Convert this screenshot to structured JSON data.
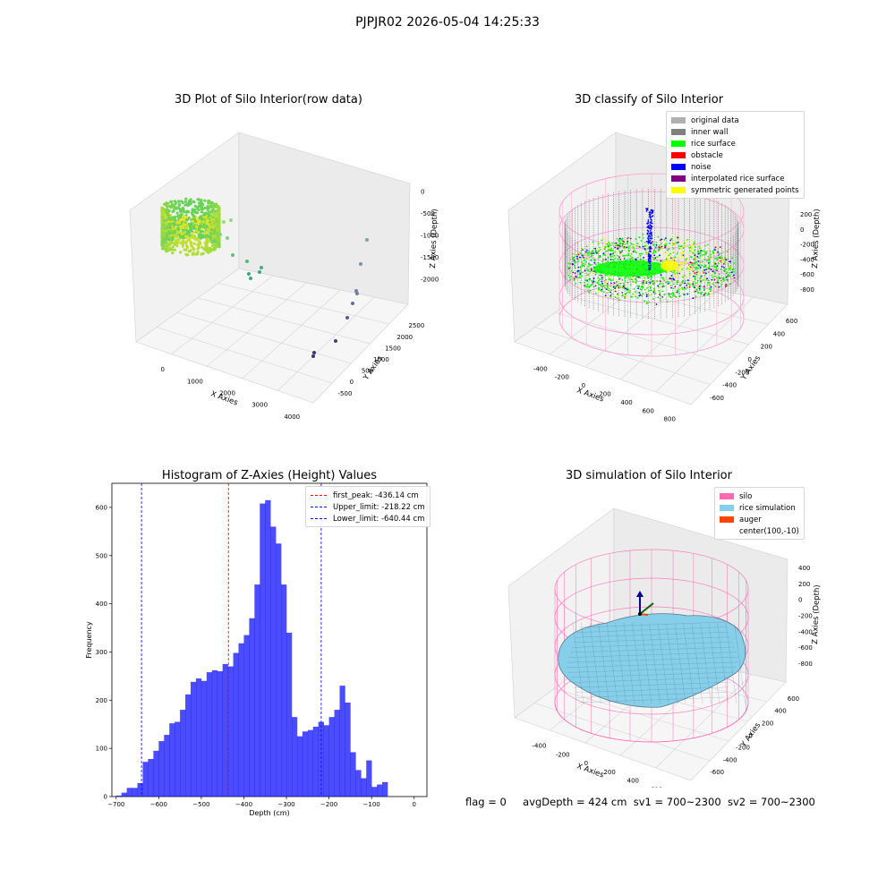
{
  "figure": {
    "suptitle": "PJPJR02 2026-05-04 14:25:33",
    "status": {
      "flag": "flag = 0",
      "avg_depth": "avgDepth = 424 cm",
      "sv1": "sv1 = 700~2300",
      "sv2": "sv2 = 700~2300"
    }
  },
  "panels": {
    "raw": {
      "title": "3D Plot of Silo Interior(row data)",
      "xlabel": "X Axies",
      "ylabel": "Y Axies",
      "zlabel": "Z Axies (Depth)",
      "xticks": [
        "0",
        "1000",
        "2000",
        "3000",
        "4000"
      ],
      "yticks": [
        "-500",
        "0",
        "500",
        "1000",
        "1500",
        "2000",
        "2500"
      ],
      "zticks": [
        "0",
        "-500",
        "-1000",
        "-1500",
        "-2000"
      ]
    },
    "classify": {
      "title": "3D classify of Silo Interior",
      "xlabel": "X Axies",
      "ylabel": "Y Axies",
      "zlabel": "Z Axies (Depth)",
      "xticks": [
        "-400",
        "-200",
        "0",
        "200",
        "400",
        "600",
        "800"
      ],
      "yticks": [
        "-600",
        "-400",
        "-200",
        "0",
        "200",
        "400",
        "600"
      ],
      "zticks": [
        "200",
        "0",
        "-200",
        "-400",
        "-600",
        "-800"
      ],
      "legend": [
        {
          "label": "original data",
          "color": "#b0b0b0"
        },
        {
          "label": "inner wall",
          "color": "#808080"
        },
        {
          "label": "rice surface",
          "color": "#00ff00"
        },
        {
          "label": "obstacle",
          "color": "#ff0000"
        },
        {
          "label": "noise",
          "color": "#0000ff"
        },
        {
          "label": "interpolated rice surface",
          "color": "#800080"
        },
        {
          "label": "symmetric generated points",
          "color": "#ffff00"
        }
      ]
    },
    "simulation": {
      "title": "3D simulation of Silo Interior",
      "xlabel": "X Axies",
      "ylabel": "Y Axies",
      "zlabel": "Z Axies (Depth)",
      "xticks": [
        "-400",
        "-200",
        "0",
        "200",
        "400",
        "600"
      ],
      "yticks": [
        "-600",
        "-400",
        "-200",
        "0",
        "200",
        "400",
        "600"
      ],
      "zticks": [
        "400",
        "200",
        "0",
        "-200",
        "-400",
        "-600",
        "-800"
      ],
      "legend": [
        {
          "label": "silo",
          "color": "#ff69b4"
        },
        {
          "label": "rice simulation",
          "color": "#87ceeb"
        },
        {
          "label": "auger",
          "color": "#ff4500"
        },
        {
          "label": "center(100,-10)",
          "color": ""
        }
      ]
    }
  },
  "chart_data": {
    "type": "bar",
    "title": "Histogram of Z-Axies (Height) Values",
    "xlabel": "Depth (cm)",
    "ylabel": "Frequency",
    "xlim": [
      -710,
      30
    ],
    "ylim": [
      0,
      650
    ],
    "xticks": [
      -700,
      -600,
      -500,
      -400,
      -300,
      -200,
      -100,
      0
    ],
    "yticks": [
      0,
      100,
      200,
      300,
      400,
      500,
      600
    ],
    "bar_color": "#0000ff",
    "bin_width": 12.5,
    "bin_start": -700,
    "values": [
      2,
      8,
      18,
      18,
      28,
      72,
      78,
      95,
      115,
      128,
      152,
      155,
      180,
      212,
      238,
      245,
      240,
      258,
      262,
      260,
      275,
      270,
      298,
      318,
      335,
      370,
      440,
      608,
      615,
      560,
      525,
      440,
      340,
      165,
      125,
      135,
      138,
      145,
      155,
      148,
      165,
      180,
      230,
      195,
      92,
      55,
      38,
      75,
      20,
      25,
      30
    ],
    "vlines": [
      {
        "label": "first_peak: -436.14 cm",
        "x": -436.14,
        "color": "#ff0000"
      },
      {
        "label": "Upper_limit: -218.22 cm",
        "x": -218.22,
        "color": "#0000ff"
      },
      {
        "label": "Lower_limit: -640.44 cm",
        "x": -640.44,
        "color": "#0000ff"
      }
    ],
    "legend_position": "upper right"
  }
}
